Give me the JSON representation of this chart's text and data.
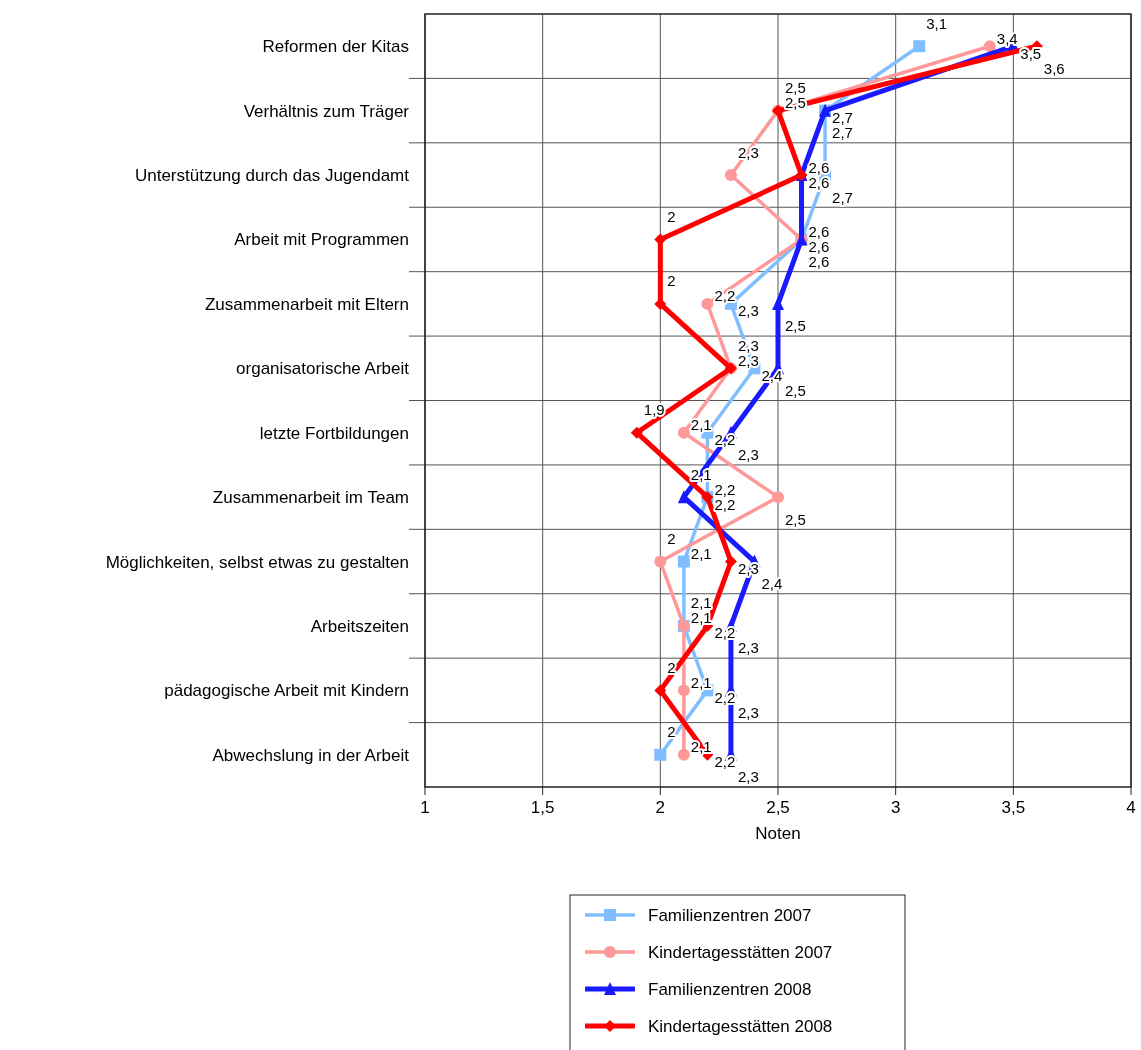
{
  "chart_data": {
    "type": "line",
    "orientation": "horizontal",
    "xlabel": "Noten",
    "categories": [
      "Reformen der Kitas",
      "Verhältnis zum Träger",
      "Unterstützung durch das Jugendamt",
      "Arbeit mit Programmen",
      "Zusammenarbeit mit Eltern",
      "organisatorische Arbeit",
      "letzte Fortbildungen",
      "Zusammenarbeit im Team",
      "Möglichkeiten, selbst etwas zu gestalten",
      "Arbeitszeiten",
      "pädagogische Arbeit mit Kindern",
      "Abwechslung in der Arbeit"
    ],
    "series": [
      {
        "name": "Familienzentren 2007",
        "color": "#80bfff",
        "marker": "square",
        "values": [
          3.1,
          2.7,
          2.7,
          2.6,
          2.3,
          2.4,
          2.2,
          2.2,
          2.1,
          2.1,
          2.2,
          2.0
        ],
        "value_labels": [
          "3,1",
          "2,7",
          "2,7",
          "2,6",
          "2,3",
          "2,4",
          "2,2",
          "2,2",
          "2,1",
          "2,1",
          "2,2",
          "2"
        ]
      },
      {
        "name": "Kindertagesstätten 2007",
        "color": "#ff9999",
        "marker": "circle",
        "values": [
          3.4,
          2.5,
          2.3,
          2.6,
          2.2,
          2.3,
          2.1,
          2.5,
          2.0,
          2.1,
          2.1,
          2.1
        ],
        "value_labels": [
          "3,4",
          "2,5",
          "2,3",
          "2,6",
          "2,2",
          "2,3",
          "2,1",
          "2,5",
          "2",
          "2,1",
          "2,1",
          "2,1"
        ]
      },
      {
        "name": "Familienzentren 2008",
        "color": "#1a1aff",
        "marker": "triangle",
        "values": [
          3.5,
          2.7,
          2.6,
          2.6,
          2.5,
          2.5,
          2.3,
          2.1,
          2.4,
          2.3,
          2.3,
          2.3
        ],
        "value_labels": [
          "3,5",
          "2,7",
          "2,6",
          "2,6",
          "2,5",
          "2,5",
          "2,3",
          "2,1",
          "2,4",
          "2,3",
          "2,3",
          "2,3"
        ]
      },
      {
        "name": "Kindertagesstätten 2008",
        "color": "#ff0000",
        "marker": "diamond",
        "values": [
          3.6,
          2.5,
          2.6,
          2.0,
          2.0,
          2.3,
          1.9,
          2.2,
          2.3,
          2.2,
          2.0,
          2.2
        ],
        "value_labels": [
          "3,6",
          "2,5",
          "2,6",
          "2",
          "2",
          "2,3",
          "1,9",
          "2,2",
          "2,3",
          "2,2",
          "2",
          "2,2"
        ]
      }
    ],
    "xlim": [
      1,
      4
    ],
    "xticks": [
      1,
      {
        "value": 1.5,
        "label": "1,5"
      },
      2,
      {
        "value": 2.5,
        "label": "2,5"
      },
      3,
      {
        "value": 3.5,
        "label": "3,5"
      },
      4
    ],
    "grid": true,
    "legend": "bottom"
  }
}
